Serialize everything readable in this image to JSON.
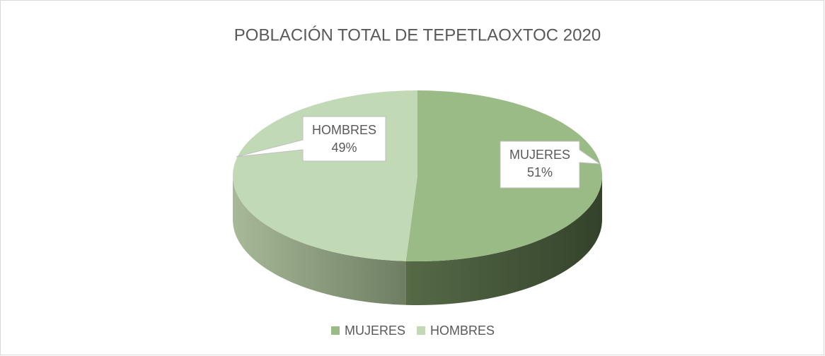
{
  "chart_data": {
    "type": "pie",
    "title": "POBLACIÓN TOTAL DE TEPETLAOXTOC 2020",
    "categories": [
      "MUJERES",
      "HOMBRES"
    ],
    "values": [
      51,
      49
    ],
    "value_labels": [
      "51%",
      "49%"
    ],
    "colors": [
      "#9bbb86",
      "#c2d9b6"
    ],
    "legend": "bottom"
  }
}
